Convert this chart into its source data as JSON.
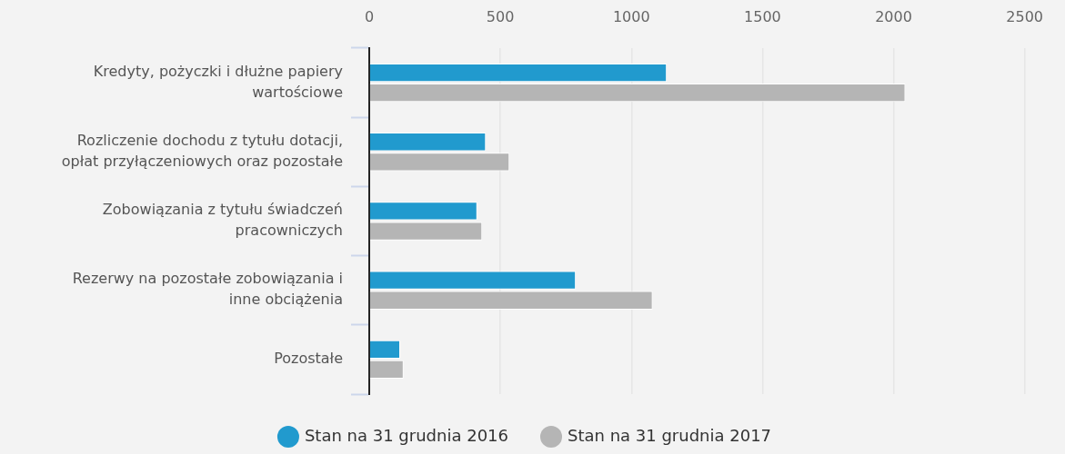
{
  "chart_data": {
    "type": "bar",
    "orientation": "horizontal",
    "categories": [
      "Kredyty, pożyczki i dłużne papiery wartościowe",
      "Rozliczenie dochodu z tytułu dotacji, opłat przyłączeniowych oraz pozostałe",
      "Zobowiązania z tytułu świadczeń pracowniczych",
      "Rezerwy na pozostałe zobowiązania i inne obciążenia",
      "Pozostałe"
    ],
    "series": [
      {
        "name": "Stan na 31 grudnia 2016",
        "color": "#219ace",
        "values": [
          1135,
          445,
          412,
          788,
          118
        ]
      },
      {
        "name": "Stan na 31 grudnia 2017",
        "color": "#b5b5b5",
        "values": [
          2045,
          535,
          431,
          1081,
          131
        ]
      }
    ],
    "xlim": [
      0,
      2500
    ],
    "xticks": [
      0,
      500,
      1000,
      1500,
      2000,
      2500
    ],
    "grid": "x",
    "legend": "bottom"
  }
}
